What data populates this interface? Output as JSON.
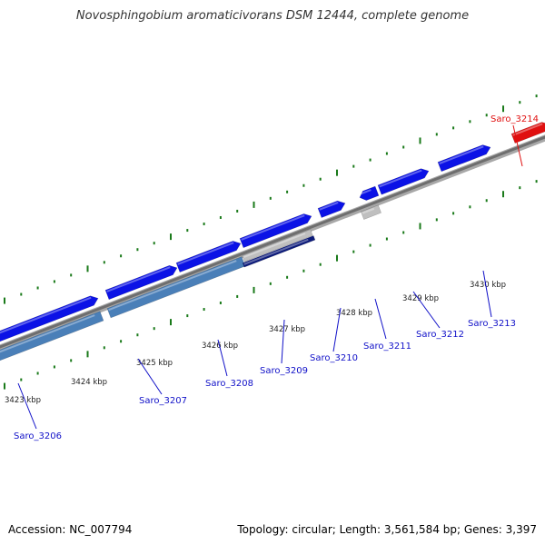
{
  "title": "Novosphingobium aromaticivorans DSM 12444, complete genome",
  "footer": {
    "accession": "Accession: NC_007794",
    "topology": "Topology: circular; Length: 3,561,584 bp; Genes: 3,397"
  },
  "colors": {
    "forward_gene": "#0b12e6",
    "reverse_gene": "#4a7fb8",
    "selected_gene": "#e01010",
    "grey_gene": "#bfbfbf",
    "navy_gene": "#0c1a7a",
    "backbone": "#808080",
    "ticks": "#1a7a1a",
    "gene_label": "#1010c8",
    "highlight_label": "#e01010"
  },
  "scale_labels": [
    {
      "text": "3423 kbp"
    },
    {
      "text": "3424 kbp"
    },
    {
      "text": "3425 kbp"
    },
    {
      "text": "3426 kbp"
    },
    {
      "text": "3427 kbp"
    },
    {
      "text": "3428 kbp"
    },
    {
      "text": "3429 kbp"
    },
    {
      "text": "3430 kbp"
    }
  ],
  "gene_labels": [
    {
      "text": "Saro_3206"
    },
    {
      "text": "Saro_3207"
    },
    {
      "text": "Saro_3208"
    },
    {
      "text": "Saro_3209"
    },
    {
      "text": "Saro_3210"
    },
    {
      "text": "Saro_3211"
    },
    {
      "text": "Saro_3212"
    },
    {
      "text": "Saro_3213"
    },
    {
      "text": "Saro_3214"
    }
  ]
}
